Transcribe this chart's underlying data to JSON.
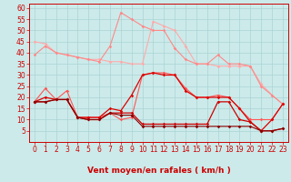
{
  "x": [
    0,
    1,
    2,
    3,
    4,
    5,
    6,
    7,
    8,
    9,
    10,
    11,
    12,
    13,
    14,
    15,
    16,
    17,
    18,
    19,
    20,
    21,
    22,
    23
  ],
  "series": [
    {
      "color": "#ffaaaa",
      "lw": 0.8,
      "marker": "D",
      "ms": 1.8,
      "y": [
        45,
        44,
        40,
        39,
        38,
        37,
        37,
        36,
        36,
        35,
        35,
        54,
        52,
        50,
        43,
        35,
        35,
        34,
        34,
        34,
        34,
        26,
        21,
        17
      ]
    },
    {
      "color": "#ff8888",
      "lw": 0.8,
      "marker": "D",
      "ms": 1.8,
      "y": [
        39,
        43,
        40,
        39,
        38,
        37,
        36,
        43,
        58,
        55,
        52,
        50,
        50,
        42,
        37,
        35,
        35,
        39,
        35,
        35,
        34,
        25,
        21,
        17
      ]
    },
    {
      "color": "#ff5555",
      "lw": 0.8,
      "marker": "D",
      "ms": 1.8,
      "y": [
        18,
        24,
        19,
        23,
        11,
        11,
        11,
        13,
        10,
        11,
        30,
        31,
        31,
        30,
        24,
        20,
        20,
        21,
        20,
        15,
        10,
        10,
        10,
        17
      ]
    },
    {
      "color": "#dd0000",
      "lw": 0.9,
      "marker": "D",
      "ms": 1.8,
      "y": [
        18,
        20,
        19,
        19,
        11,
        11,
        11,
        15,
        14,
        21,
        30,
        31,
        30,
        30,
        23,
        20,
        20,
        20,
        20,
        15,
        9,
        5,
        10,
        17
      ]
    },
    {
      "color": "#cc0000",
      "lw": 0.9,
      "marker": "D",
      "ms": 1.8,
      "y": [
        18,
        18,
        19,
        19,
        11,
        10,
        10,
        13,
        13,
        13,
        8,
        8,
        8,
        8,
        8,
        8,
        8,
        18,
        18,
        10,
        9,
        5,
        5,
        6
      ]
    },
    {
      "color": "#880000",
      "lw": 0.8,
      "marker": "D",
      "ms": 1.8,
      "y": [
        18,
        18,
        19,
        19,
        11,
        10,
        10,
        13,
        12,
        12,
        7,
        7,
        7,
        7,
        7,
        7,
        7,
        7,
        7,
        7,
        7,
        5,
        5,
        6
      ]
    }
  ],
  "xlabel": "Vent moyen/en rafales ( km/h )",
  "xlim": [
    -0.5,
    23.5
  ],
  "ylim": [
    0,
    62
  ],
  "yticks": [
    5,
    10,
    15,
    20,
    25,
    30,
    35,
    40,
    45,
    50,
    55,
    60
  ],
  "xticks": [
    0,
    1,
    2,
    3,
    4,
    5,
    6,
    7,
    8,
    9,
    10,
    11,
    12,
    13,
    14,
    15,
    16,
    17,
    18,
    19,
    20,
    21,
    22,
    23
  ],
  "bg_color": "#cceaea",
  "grid_color": "#aad4d4",
  "red_color": "#cc0000",
  "xlabel_fontsize": 6.5,
  "tick_fontsize": 5.5
}
